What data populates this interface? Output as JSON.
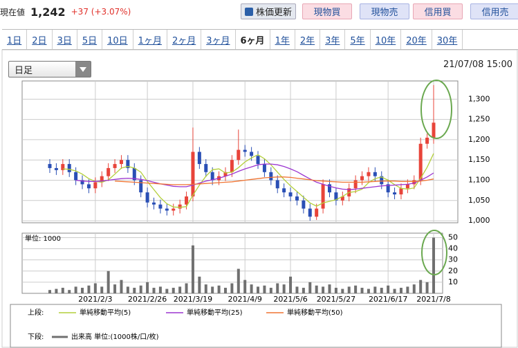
{
  "header": {
    "label": "現在値",
    "price": "1,242",
    "change": "+37 (+3.07%)"
  },
  "buttons": [
    "株価更新",
    "現物買",
    "現物売",
    "信用買",
    "信用売"
  ],
  "tabs": [
    {
      "label": "1日",
      "selected": false
    },
    {
      "label": "2日",
      "selected": false
    },
    {
      "label": "3日",
      "selected": false
    },
    {
      "label": "5日",
      "selected": false
    },
    {
      "label": "10日",
      "selected": false
    },
    {
      "label": "1ヶ月",
      "selected": false
    },
    {
      "label": "2ヶ月",
      "selected": false
    },
    {
      "label": "3ヶ月",
      "selected": false
    },
    {
      "label": "6ヶ月",
      "selected": true
    },
    {
      "label": "1年",
      "selected": false
    },
    {
      "label": "2年",
      "selected": false
    },
    {
      "label": "3年",
      "selected": false
    },
    {
      "label": "5年",
      "selected": false
    },
    {
      "label": "10年",
      "selected": false
    },
    {
      "label": "20年",
      "selected": false
    },
    {
      "label": "30年",
      "selected": false
    }
  ],
  "dropdown": "日足",
  "timestamp": "21/07/08 15:00",
  "legend": {
    "upper": "上段:",
    "lower": "下段:"
  },
  "chart_data": [
    {
      "type": "candlestick",
      "up_color": "#e8443a",
      "down_color": "#2a4fb5",
      "open": [
        1140,
        1130,
        1125,
        1140,
        1120,
        1100,
        1090,
        1080,
        1095,
        1110,
        1130,
        1140,
        1150,
        1130,
        1100,
        1070,
        1045,
        1040,
        1030,
        1025,
        1030,
        1040,
        1060,
        1170,
        1140,
        1120,
        1100,
        1110,
        1120,
        1150,
        1175,
        1170,
        1160,
        1140,
        1120,
        1100,
        1080,
        1070,
        1060,
        1050,
        1030,
        1010,
        1030,
        1090,
        1070,
        1050,
        1060,
        1080,
        1100,
        1110,
        1120,
        1110,
        1090,
        1070,
        1065,
        1080,
        1090,
        1100,
        1190,
        1205
      ],
      "high": [
        1152,
        1142,
        1152,
        1152,
        1132,
        1112,
        1102,
        1107,
        1122,
        1142,
        1152,
        1162,
        1162,
        1142,
        1112,
        1082,
        1057,
        1052,
        1042,
        1042,
        1052,
        1072,
        1230,
        1182,
        1152,
        1132,
        1122,
        1132,
        1162,
        1225,
        1187,
        1182,
        1172,
        1152,
        1132,
        1112,
        1092,
        1082,
        1072,
        1062,
        1042,
        1042,
        1102,
        1102,
        1082,
        1072,
        1092,
        1112,
        1122,
        1132,
        1132,
        1122,
        1102,
        1082,
        1092,
        1102,
        1112,
        1205,
        1215,
        1335
      ],
      "low": [
        1118,
        1113,
        1113,
        1108,
        1088,
        1078,
        1068,
        1068,
        1083,
        1098,
        1118,
        1128,
        1118,
        1088,
        1058,
        1033,
        1028,
        1018,
        1013,
        1013,
        1018,
        1028,
        1048,
        1128,
        1108,
        1088,
        1088,
        1098,
        1108,
        1138,
        1158,
        1148,
        1128,
        1108,
        1088,
        1068,
        1058,
        1048,
        1038,
        1018,
        1000,
        1002,
        1018,
        1058,
        1038,
        1038,
        1048,
        1068,
        1088,
        1098,
        1098,
        1078,
        1058,
        1053,
        1053,
        1068,
        1078,
        1088,
        1178,
        1190
      ],
      "close": [
        1130,
        1125,
        1140,
        1120,
        1100,
        1090,
        1080,
        1095,
        1110,
        1130,
        1140,
        1150,
        1130,
        1100,
        1070,
        1045,
        1040,
        1030,
        1025,
        1030,
        1040,
        1060,
        1170,
        1140,
        1120,
        1100,
        1110,
        1120,
        1150,
        1175,
        1170,
        1160,
        1140,
        1120,
        1100,
        1080,
        1070,
        1060,
        1050,
        1030,
        1010,
        1030,
        1090,
        1070,
        1050,
        1060,
        1080,
        1100,
        1110,
        1120,
        1110,
        1090,
        1070,
        1065,
        1080,
        1090,
        1100,
        1190,
        1205,
        1242
      ],
      "series": [
        {
          "name": "単純移動平均(5)",
          "color": "#b3cf3a",
          "values": [
            null,
            null,
            1128,
            1127,
            1123,
            1115,
            1104,
            1097,
            1095,
            1101,
            1115,
            1130,
            1134,
            1130,
            1120,
            1097,
            1077,
            1057,
            1042,
            1034,
            1033,
            1035,
            1063,
            1088,
            1110,
            1126,
            1128,
            1118,
            1120,
            1131,
            1145,
            1155,
            1163,
            1153,
            1138,
            1120,
            1102,
            1086,
            1072,
            1058,
            1044,
            1036,
            1044,
            1048,
            1052,
            1060,
            1070,
            1072,
            1078,
            1094,
            1104,
            1108,
            1100,
            1089,
            1080,
            1078,
            1081,
            1105,
            1132,
            1166
          ]
        },
        {
          "name": "単純移動平均(25)",
          "color": "#9b35d0",
          "values": [
            null,
            null,
            null,
            null,
            1100,
            1098,
            1097,
            1097,
            1098,
            1100,
            1102,
            1104,
            1105,
            1104,
            1102,
            1099,
            1095,
            1091,
            1088,
            1085,
            1084,
            1084,
            1088,
            1093,
            1098,
            1101,
            1105,
            1110,
            1115,
            1122,
            1128,
            1133,
            1138,
            1140,
            1140,
            1138,
            1134,
            1128,
            1121,
            1112,
            1103,
            1095,
            1090,
            1085,
            1081,
            1078,
            1077,
            1078,
            1080,
            1082,
            1084,
            1086,
            1087,
            1088,
            1089,
            1090,
            1093,
            1100,
            1108,
            1118
          ]
        },
        {
          "name": "単純移動平均(50)",
          "color": "#f07432",
          "values": [
            null,
            null,
            null,
            null,
            null,
            null,
            null,
            null,
            null,
            null,
            1098,
            1097,
            1096,
            1095,
            1094,
            1093,
            1092,
            1091,
            1090,
            1089,
            1089,
            1089,
            1090,
            1091,
            1092,
            1093,
            1094,
            1095,
            1096,
            1098,
            1100,
            1102,
            1104,
            1106,
            1107,
            1108,
            1108,
            1107,
            1105,
            1103,
            1101,
            1099,
            1098,
            1097,
            1096,
            1095,
            1095,
            1095,
            1095,
            1096,
            1097,
            1098,
            1098,
            1098,
            1097,
            1097,
            1097,
            1098,
            1100,
            1103
          ]
        }
      ],
      "ylim": [
        995,
        1345
      ],
      "yticks": [
        {
          "value": 1000,
          "label": "1,000"
        },
        {
          "value": 1050,
          "label": "1,050"
        },
        {
          "value": 1100,
          "label": "1,100"
        },
        {
          "value": 1150,
          "label": "1,150"
        },
        {
          "value": 1200,
          "label": "1,200"
        },
        {
          "value": 1250,
          "label": "1,250"
        },
        {
          "value": 1300,
          "label": "1,300"
        }
      ],
      "grid": true
    },
    {
      "type": "bar",
      "unit_label": "単位: 1000",
      "categories": [
        null,
        null,
        null,
        null,
        null,
        null,
        null,
        "2021/2/3",
        null,
        null,
        null,
        null,
        null,
        null,
        null,
        "2021/2/26",
        null,
        null,
        null,
        null,
        null,
        null,
        "2021/3/19",
        null,
        null,
        null,
        null,
        null,
        null,
        null,
        "2021/4/9",
        null,
        null,
        null,
        null,
        null,
        null,
        "2021/5/6",
        null,
        null,
        null,
        null,
        null,
        null,
        "2021/5/27",
        null,
        null,
        null,
        null,
        null,
        null,
        null,
        "2021/6/17",
        null,
        null,
        null,
        null,
        null,
        null,
        "2021/7/8"
      ],
      "series": [
        {
          "name": "出来高 単位:(1000株/口/枚)",
          "color": "#707070",
          "values": [
            3,
            4,
            5,
            3,
            6,
            5,
            7,
            9,
            6,
            20,
            8,
            12,
            6,
            5,
            7,
            10,
            5,
            6,
            4,
            5,
            6,
            9,
            43,
            15,
            8,
            6,
            7,
            5,
            9,
            22,
            12,
            8,
            6,
            7,
            5,
            9,
            8,
            15,
            6,
            5,
            10,
            7,
            6,
            8,
            5,
            4,
            6,
            7,
            5,
            4,
            6,
            5,
            7,
            4,
            5,
            6,
            8,
            12,
            10,
            50
          ]
        }
      ],
      "ylim": [
        0,
        54
      ],
      "yticks": [
        10,
        20,
        30,
        40,
        50
      ],
      "grid": true
    }
  ]
}
